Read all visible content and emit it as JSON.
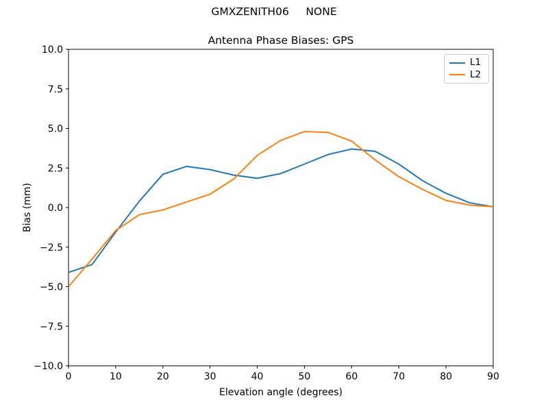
{
  "figure": {
    "background": "#ffffff"
  },
  "chart_data": {
    "type": "line",
    "suptitle": "GMXZENITH06     NONE",
    "title": "Antenna Phase Biases: GPS",
    "xlabel": "Elevation angle (degrees)",
    "ylabel": "Bias (mm)",
    "xlim": [
      0,
      90
    ],
    "ylim": [
      -10,
      10
    ],
    "grid": false,
    "legend_position": "upper right",
    "axis_color": "#000000",
    "x_ticks": {
      "values": [
        0,
        10,
        20,
        30,
        40,
        50,
        60,
        70,
        80,
        90
      ],
      "labels": [
        "0",
        "10",
        "20",
        "30",
        "40",
        "50",
        "60",
        "70",
        "80",
        "90"
      ]
    },
    "y_ticks": {
      "values": [
        -10,
        -7.5,
        -5,
        -2.5,
        0,
        2.5,
        5,
        7.5,
        10
      ],
      "labels": [
        "−10.0",
        "−7.5",
        "−5.0",
        "−2.5",
        "0.0",
        "2.5",
        "5.0",
        "7.5",
        "10.0"
      ]
    },
    "x": [
      0,
      5,
      10,
      15,
      20,
      25,
      30,
      35,
      40,
      45,
      50,
      55,
      60,
      65,
      70,
      75,
      80,
      85,
      90
    ],
    "series": [
      {
        "name": "L1",
        "color": "#1f77b4",
        "values": [
          -4.1,
          -3.6,
          -1.55,
          0.4,
          2.1,
          2.6,
          2.4,
          2.05,
          1.85,
          2.15,
          2.75,
          3.35,
          3.7,
          3.55,
          2.75,
          1.7,
          0.9,
          0.3,
          0.05
        ]
      },
      {
        "name": "L2",
        "color": "#ff7f0e",
        "values": [
          -5.0,
          -3.25,
          -1.45,
          -0.45,
          -0.15,
          0.35,
          0.85,
          1.8,
          3.3,
          4.25,
          4.8,
          4.75,
          4.2,
          3.0,
          1.95,
          1.15,
          0.45,
          0.15,
          0.05
        ]
      }
    ]
  }
}
